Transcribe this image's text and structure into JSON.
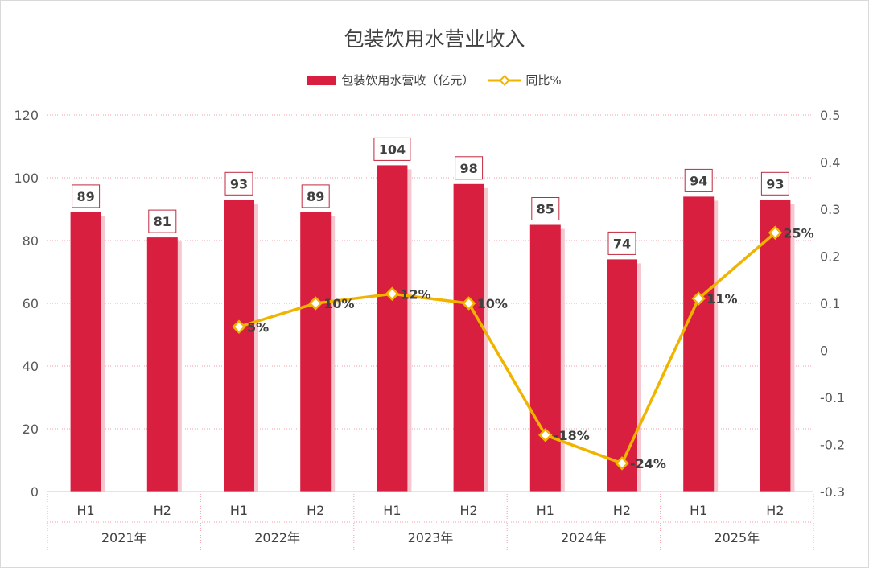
{
  "chart_data": {
    "type": "bar",
    "title": "包装饮用水营业收入",
    "series": [
      {
        "name": "包装饮用水营收（亿元）",
        "type": "bar",
        "axis": "left",
        "color": "#d81f3f",
        "values": [
          89,
          81,
          93,
          89,
          104,
          98,
          85,
          74,
          94,
          93
        ],
        "labels": [
          "89",
          "81",
          "93",
          "89",
          "104",
          "98",
          "85",
          "74",
          "94",
          "93"
        ]
      },
      {
        "name": "同比%",
        "type": "line",
        "axis": "right",
        "color": "#f0b400",
        "values": [
          null,
          null,
          0.05,
          0.1,
          0.12,
          0.1,
          -0.18,
          -0.24,
          0.11,
          0.25
        ],
        "labels": [
          "",
          "",
          "5%",
          "10%",
          "12%",
          "10%",
          "-18%",
          "-24%",
          "11%",
          "25%"
        ]
      }
    ],
    "categories": [
      "H1",
      "H2",
      "H1",
      "H2",
      "H1",
      "H2",
      "H1",
      "H2",
      "H1",
      "H2"
    ],
    "groups": [
      {
        "label": "2021年",
        "span": 2
      },
      {
        "label": "2022年",
        "span": 2
      },
      {
        "label": "2023年",
        "span": 2
      },
      {
        "label": "2024年",
        "span": 2
      },
      {
        "label": "2025年",
        "span": 2
      }
    ],
    "y_left": {
      "min": 0,
      "max": 120,
      "ticks": [
        "0",
        "20",
        "40",
        "60",
        "80",
        "100",
        "120"
      ]
    },
    "y_right": {
      "min": -0.3,
      "max": 0.5,
      "ticks": [
        "-0.3",
        "-0.2",
        "-0.1",
        "0",
        "0.1",
        "0.2",
        "0.3",
        "0.4",
        "0.5"
      ]
    },
    "grid": true,
    "legend_position": "top"
  }
}
